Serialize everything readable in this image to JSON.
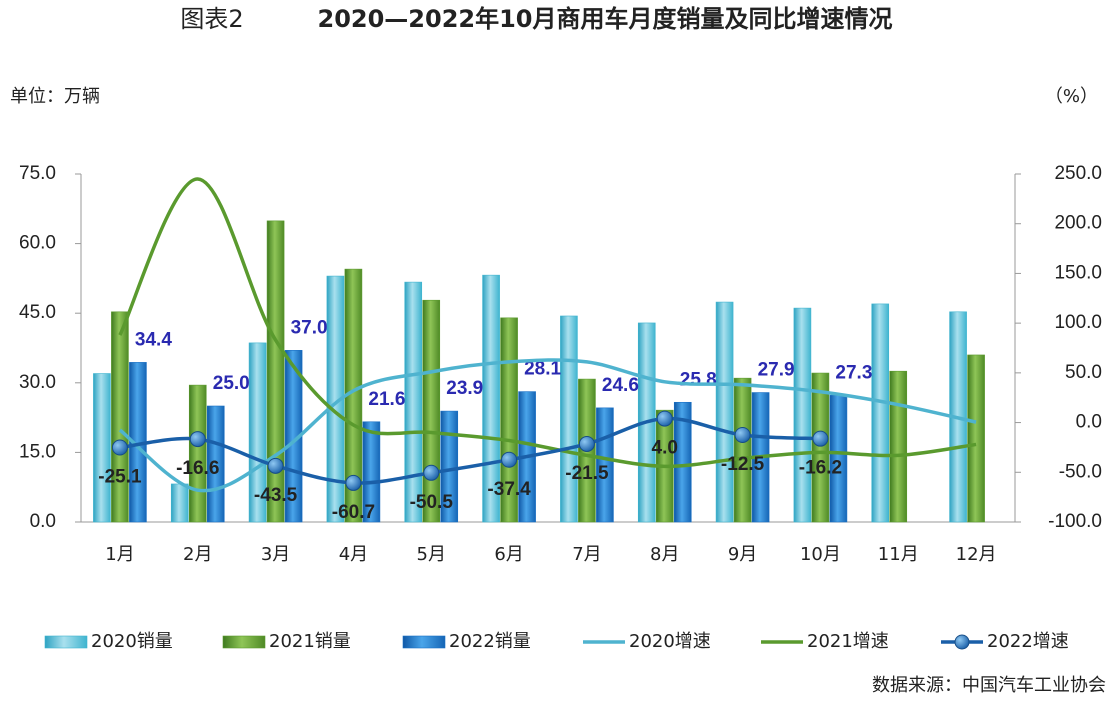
{
  "chart_data": {
    "type": "bar",
    "title_label": "图表2",
    "title": "2020—2022年10月商用车月度销量及同比增速情况",
    "y_label": "单位：万辆",
    "y2_label": "（%）",
    "source": "数据来源：中国汽车工业协会",
    "categories": [
      "1月",
      "2月",
      "3月",
      "4月",
      "5月",
      "6月",
      "7月",
      "8月",
      "9月",
      "10月",
      "11月",
      "12月"
    ],
    "ylim": [
      0,
      75
    ],
    "yticks": [
      {
        "value": 0,
        "label": "0.0"
      },
      {
        "value": 15,
        "label": "15.0"
      },
      {
        "value": 30,
        "label": "30.0"
      },
      {
        "value": 45,
        "label": "45.0"
      },
      {
        "value": 60,
        "label": "60.0"
      },
      {
        "value": 75,
        "label": "75.0"
      }
    ],
    "y2lim": [
      -100,
      250
    ],
    "y2ticks": [
      {
        "value": -100,
        "label": "-100.0"
      },
      {
        "value": -50,
        "label": "-50.0"
      },
      {
        "value": 0,
        "label": "0.0"
      },
      {
        "value": 50,
        "label": "50.0"
      },
      {
        "value": 100,
        "label": "100.0"
      },
      {
        "value": 150,
        "label": "150.0"
      },
      {
        "value": 200,
        "label": "200.0"
      },
      {
        "value": 250,
        "label": "250.0"
      }
    ],
    "grid": false,
    "legend": "bottom",
    "series": [
      {
        "name": "2020销量",
        "type": "bar",
        "color": "#3fb4cf",
        "values": [
          32,
          8.2,
          38.6,
          53,
          51.7,
          53.2,
          44.4,
          42.9,
          47.4,
          46.1,
          47,
          45.3
        ]
      },
      {
        "name": "2021销量",
        "type": "bar",
        "color": "#5b9a2e",
        "values": [
          45.3,
          29.5,
          64.9,
          54.5,
          47.8,
          44,
          30.8,
          24.1,
          31,
          32.1,
          32.5,
          36
        ]
      },
      {
        "name": "2022销量",
        "type": "bar",
        "color": "#1a6fc4",
        "values": [
          34.4,
          25.0,
          37.0,
          21.6,
          23.9,
          28.1,
          24.6,
          25.8,
          27.9,
          27.3,
          null,
          null
        ],
        "value_labels": [
          "34.4",
          "25.0",
          "37.0",
          "21.6",
          "23.9",
          "28.1",
          "24.6",
          "25.8",
          "27.9",
          "27.3",
          null,
          null
        ]
      },
      {
        "name": "2020增速",
        "type": "line",
        "axis": "y2",
        "color": "#4fb3cf",
        "values": [
          -7.5,
          -68,
          -33,
          32,
          51,
          61,
          61,
          41,
          38,
          31,
          18,
          0.5
        ]
      },
      {
        "name": "2021增速",
        "type": "line",
        "axis": "y2",
        "color": "#5a9a2e",
        "values": [
          88,
          245,
          83,
          -2.5,
          -10,
          -18,
          -33,
          -44,
          -36,
          -30,
          -33,
          -22
        ]
      },
      {
        "name": "2022增速",
        "type": "line",
        "axis": "y2",
        "marker": true,
        "color": "#1a5fa8",
        "values": [
          -25.1,
          -16.6,
          -43.5,
          -60.7,
          -50.5,
          -37.4,
          -21.5,
          4.0,
          -12.5,
          -16.2,
          null,
          null
        ],
        "value_labels": [
          "-25.1",
          "-16.6",
          "-43.5",
          "-60.7",
          "-50.5",
          "-37.4",
          "-21.5",
          "4.0",
          "-12.5",
          "-16.2",
          null,
          null
        ]
      }
    ]
  }
}
